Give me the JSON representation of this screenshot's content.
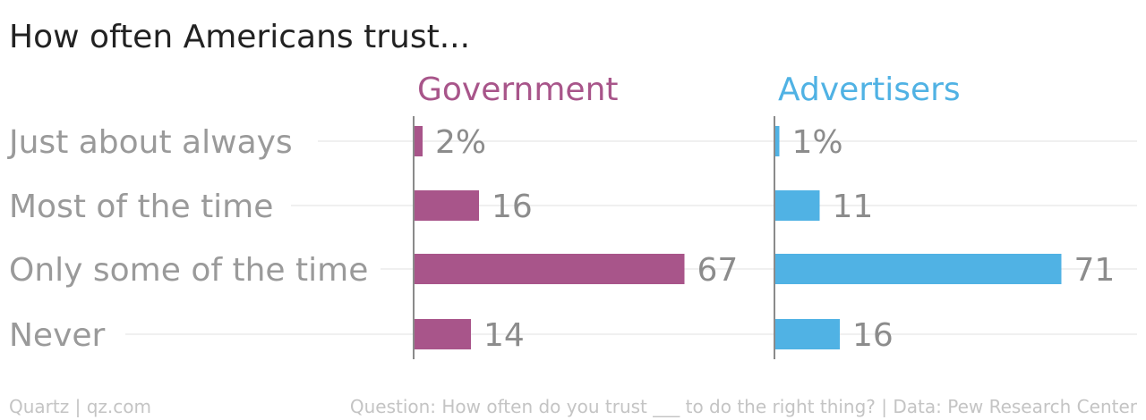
{
  "title": "How often Americans trust...",
  "footer": {
    "source_left": "Quartz | qz.com",
    "source_right": "Question: How often do you trust ___ to do the right thing? | Data: Pew Research Center"
  },
  "colors": {
    "government": "#a8558a",
    "advertisers": "#50b2e4",
    "gridline": "#ececec",
    "axis": "#8a8a8a"
  },
  "chart_data": {
    "type": "bar",
    "orientation": "horizontal",
    "categories": [
      "Just about always",
      "Most of the time",
      "Only some of the time",
      "Never"
    ],
    "series": [
      {
        "name": "Government",
        "values": [
          2,
          16,
          67,
          14
        ],
        "labels": [
          "2%",
          "16",
          "67",
          "14"
        ]
      },
      {
        "name": "Advertisers",
        "values": [
          1,
          11,
          71,
          16
        ],
        "labels": [
          "1%",
          "11",
          "71",
          "16"
        ]
      }
    ],
    "unit": "%",
    "grid": true,
    "legend": "panel titles above each column"
  }
}
